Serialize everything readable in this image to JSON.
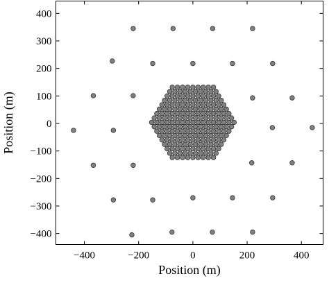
{
  "chart_data": {
    "type": "scatter",
    "x_label": "Position (m)",
    "y_label": "Position (m)",
    "color": "#808080",
    "edge_color": "#333333",
    "xlim": [
      -505,
      480
    ],
    "ylim": [
      -440,
      445
    ],
    "xticks": [
      {
        "value": -400,
        "label": "−400"
      },
      {
        "value": -200,
        "label": "−200"
      },
      0,
      200,
      400
    ],
    "yticks": [
      {
        "value": -400,
        "label": "−400"
      },
      {
        "value": -300,
        "label": "−300"
      },
      {
        "value": -200,
        "label": "−200"
      },
      {
        "value": -100,
        "label": "−100"
      },
      0,
      100,
      200,
      300,
      400
    ],
    "x": [
      -220,
      -73,
      73,
      220,
      -297,
      -148,
      0,
      146,
      294,
      -367,
      -220,
      220,
      366,
      -440,
      -293,
      293,
      440,
      -367,
      -220,
      217,
      366,
      -293,
      -148,
      0,
      146,
      294,
      -225,
      -77,
      72,
      220,
      -76,
      -57,
      -38,
      -19,
      0,
      19,
      38,
      57,
      76,
      -85.5,
      -66.5,
      -47.5,
      -28.5,
      -9.5,
      9.5,
      28.5,
      47.5,
      66.5,
      85.5,
      -95,
      -76,
      -57,
      -38,
      -19,
      0,
      19,
      38,
      57,
      76,
      95,
      -104.5,
      -85.5,
      -66.5,
      -47.5,
      -28.5,
      -9.5,
      9.5,
      28.5,
      47.5,
      66.5,
      85.5,
      104.5,
      -114,
      -95,
      -76,
      -57,
      -38,
      -19,
      0,
      19,
      38,
      57,
      76,
      95,
      114,
      -123.5,
      -104.5,
      -85.5,
      -66.5,
      -47.5,
      -28.5,
      -9.5,
      9.5,
      28.5,
      47.5,
      66.5,
      85.5,
      104.5,
      123.5,
      -133,
      -114,
      -95,
      -76,
      -57,
      -38,
      -19,
      0,
      19,
      38,
      57,
      76,
      95,
      114,
      133,
      -142.5,
      -123.5,
      -104.5,
      -85.5,
      -66.5,
      -47.5,
      -28.5,
      -9.5,
      9.5,
      28.5,
      47.5,
      66.5,
      85.5,
      104.5,
      123.5,
      142.5,
      -152,
      -133,
      -114,
      -95,
      -76,
      -57,
      -38,
      -19,
      0,
      19,
      38,
      57,
      76,
      95,
      114,
      133,
      152,
      -142.5,
      -123.5,
      -104.5,
      -85.5,
      -66.5,
      -47.5,
      -28.5,
      -9.5,
      9.5,
      28.5,
      47.5,
      66.5,
      85.5,
      104.5,
      123.5,
      142.5,
      -133,
      -114,
      -95,
      -76,
      -57,
      -38,
      -19,
      0,
      19,
      38,
      57,
      76,
      95,
      114,
      133,
      -123.5,
      -104.5,
      -85.5,
      -66.5,
      -47.5,
      -28.5,
      -9.5,
      9.5,
      28.5,
      47.5,
      66.5,
      85.5,
      104.5,
      123.5,
      -114,
      -95,
      -76,
      -57,
      -38,
      -19,
      0,
      19,
      38,
      57,
      76,
      95,
      114,
      -104.5,
      -85.5,
      -66.5,
      -47.5,
      -28.5,
      -9.5,
      9.5,
      28.5,
      47.5,
      66.5,
      85.5,
      104.5,
      -95,
      -76,
      -57,
      -38,
      -19,
      0,
      19,
      38,
      57,
      76,
      95,
      -85.5,
      -66.5,
      -47.5,
      -28.5,
      -9.5,
      9.5,
      28.5,
      47.5,
      66.5,
      85.5,
      -76,
      -57,
      -38,
      -19,
      0,
      19,
      38,
      57,
      76
    ],
    "values": [
      345,
      345,
      345,
      345,
      227,
      218,
      218,
      218,
      218,
      101,
      101,
      93,
      93,
      -25,
      -25,
      -15,
      -15,
      -152,
      -152,
      -143,
      -143,
      -278,
      -278,
      -270,
      -270,
      -270,
      -405,
      -395,
      -395,
      -395,
      -124,
      -124,
      -124,
      -124,
      -124,
      -124,
      -124,
      -124,
      -124,
      -108,
      -108,
      -108,
      -108,
      -108,
      -108,
      -108,
      -108,
      -108,
      -108,
      -92,
      -92,
      -92,
      -92,
      -92,
      -92,
      -92,
      -92,
      -92,
      -92,
      -92,
      -76,
      -76,
      -76,
      -76,
      -76,
      -76,
      -76,
      -76,
      -76,
      -76,
      -76,
      -76,
      -60,
      -60,
      -60,
      -60,
      -60,
      -60,
      -60,
      -60,
      -60,
      -60,
      -60,
      -60,
      -60,
      -44,
      -44,
      -44,
      -44,
      -44,
      -44,
      -44,
      -44,
      -44,
      -44,
      -44,
      -44,
      -44,
      -44,
      -28,
      -28,
      -28,
      -28,
      -28,
      -28,
      -28,
      -28,
      -28,
      -28,
      -28,
      -28,
      -28,
      -28,
      -28,
      -12,
      -12,
      -12,
      -12,
      -12,
      -12,
      -12,
      -12,
      -12,
      -12,
      -12,
      -12,
      -12,
      -12,
      -12,
      -12,
      4,
      4,
      4,
      4,
      4,
      4,
      4,
      4,
      4,
      4,
      4,
      4,
      4,
      4,
      4,
      4,
      4,
      20,
      20,
      20,
      20,
      20,
      20,
      20,
      20,
      20,
      20,
      20,
      20,
      20,
      20,
      20,
      20,
      36,
      36,
      36,
      36,
      36,
      36,
      36,
      36,
      36,
      36,
      36,
      36,
      36,
      36,
      36,
      52,
      52,
      52,
      52,
      52,
      52,
      52,
      52,
      52,
      52,
      52,
      52,
      52,
      52,
      68,
      68,
      68,
      68,
      68,
      68,
      68,
      68,
      68,
      68,
      68,
      68,
      68,
      84,
      84,
      84,
      84,
      84,
      84,
      84,
      84,
      84,
      84,
      84,
      84,
      100,
      100,
      100,
      100,
      100,
      100,
      100,
      100,
      100,
      100,
      100,
      116,
      116,
      116,
      116,
      116,
      116,
      116,
      116,
      116,
      116,
      132,
      132,
      132,
      132,
      132,
      132,
      132,
      132,
      132
    ]
  }
}
